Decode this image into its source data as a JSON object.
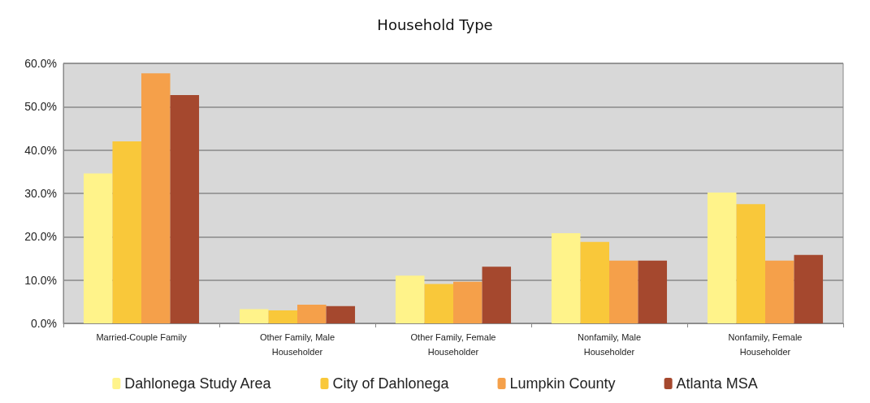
{
  "chart_data": {
    "type": "bar",
    "title": "Household Type",
    "categories": [
      "Married-Couple Family",
      "Other Family, Male\nHouseholder",
      "Other Family, Female\nHouseholder",
      "Nonfamily, Male\nHouseholder",
      "Nonfamily, Female\nHouseholder"
    ],
    "series": [
      {
        "name": "Dahlonega Study Area",
        "color": "#fff38a",
        "values": [
          34.6,
          3.3,
          11.0,
          20.8,
          30.2
        ]
      },
      {
        "name": "City of Dahlonega",
        "color": "#f9c83a",
        "values": [
          42.0,
          3.0,
          9.1,
          18.8,
          27.5
        ]
      },
      {
        "name": "Lumpkin County",
        "color": "#f5a04a",
        "values": [
          57.7,
          4.3,
          9.6,
          14.5,
          14.5
        ]
      },
      {
        "name": "Atlanta MSA",
        "color": "#a5482e",
        "values": [
          52.7,
          4.0,
          13.1,
          14.5,
          15.8
        ]
      }
    ],
    "ylim": [
      0,
      60
    ],
    "yticks": [
      {
        "value": 0,
        "label": "0.0%"
      },
      {
        "value": 10,
        "label": "10.0%"
      },
      {
        "value": 20,
        "label": "20.0%"
      },
      {
        "value": 30,
        "label": "30.0%"
      },
      {
        "value": 40,
        "label": "40.0%"
      },
      {
        "value": 50,
        "label": "50.0%"
      },
      {
        "value": 60,
        "label": "60.0%"
      }
    ],
    "grid": "y",
    "legend": "bottom"
  }
}
